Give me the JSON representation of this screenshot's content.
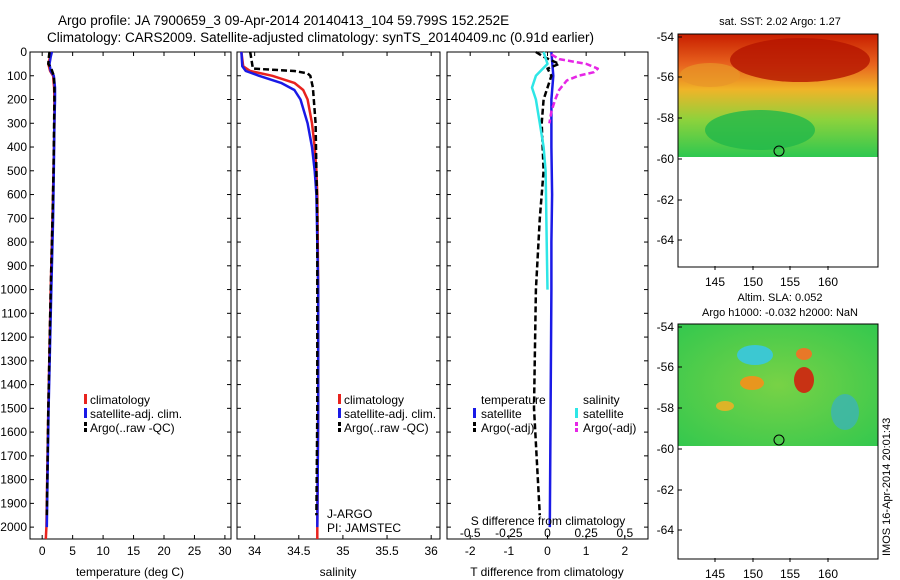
{
  "header": {
    "title_line1": "Argo profile: JA 7900659_3 09-Apr-2014 20140413_104 59.799S 152.252E",
    "title_line2": "Climatology: CARS2009. Satellite-adjusted climatology: synTS_20140409.nc (0.91d earlier)"
  },
  "colors": {
    "climatology": "#e8231e",
    "satellite": "#1a1ae6",
    "argo": "#000000",
    "sal_satellite": "#2ee6e6",
    "sal_argo": "#e626e6"
  },
  "legend": {
    "climatology": "climatology",
    "satellite_adj": "satellite-adj. clim.",
    "argo_raw": "Argo(..raw -QC)",
    "temperature_head": "temperature",
    "salinity_head": "salinity",
    "satellite": "satellite",
    "argo_adj": "Argo(-adj)"
  },
  "credits": {
    "line1": "J-ARGO",
    "line2": "PI: JAMSTEC"
  },
  "watermark": "IMOS 16-Apr-2014 20:01:43",
  "sst_map": {
    "title": "sat. SST: 2.02 Argo: 1.27",
    "lat_ticks": [
      "-54",
      "-56",
      "-58",
      "-60",
      "-62",
      "-64"
    ],
    "lon_ticks": [
      "145",
      "150",
      "155",
      "160"
    ]
  },
  "sla_map": {
    "title_line1": "Altim. SLA: 0.052",
    "title_line2": "Argo h1000: -0.032 h2000: NaN",
    "lat_ticks": [
      "-54",
      "-56",
      "-58",
      "-60",
      "-62",
      "-64"
    ],
    "lon_ticks": [
      "145",
      "150",
      "155",
      "160"
    ]
  },
  "chart_data": [
    {
      "type": "line",
      "xlabel": "temperature (deg C)",
      "ylabel": "",
      "xlim": [
        -2,
        31
      ],
      "ylim": [
        2050,
        0
      ],
      "xticks": [
        "0",
        "5",
        "10",
        "15",
        "20",
        "25",
        "30"
      ],
      "xtick_values": [
        0,
        5,
        10,
        15,
        20,
        25,
        30
      ],
      "yticks": [
        "0",
        "100",
        "200",
        "300",
        "400",
        "500",
        "600",
        "700",
        "800",
        "900",
        "1000",
        "1100",
        "1200",
        "1300",
        "1400",
        "1500",
        "1600",
        "1700",
        "1800",
        "1900",
        "2000"
      ],
      "series": [
        {
          "name": "climatology",
          "depth": [
            0,
            20,
            50,
            80,
            100,
            150,
            200,
            300,
            500,
            700,
            800,
            1000,
            1500,
            2000,
            2050
          ],
          "values": [
            1.5,
            1.3,
            1.0,
            1.3,
            1.8,
            1.95,
            2.0,
            2.0,
            1.85,
            1.7,
            1.6,
            1.4,
            1.0,
            0.7,
            0.6
          ]
        },
        {
          "name": "satellite-adj. clim.",
          "depth": [
            0,
            20,
            50,
            80,
            100,
            150,
            200,
            300,
            500,
            700,
            800,
            1000,
            1500,
            2000
          ],
          "values": [
            1.6,
            1.4,
            1.2,
            1.4,
            1.9,
            2.1,
            2.1,
            2.0,
            1.9,
            1.8,
            1.7,
            1.5,
            1.05,
            0.75
          ]
        },
        {
          "name": "Argo(..raw -QC)",
          "depth": [
            0,
            20,
            50,
            70,
            100,
            150,
            200,
            300,
            500,
            700,
            800,
            1000,
            1500,
            1950
          ],
          "values": [
            1.2,
            1.1,
            1.0,
            1.5,
            1.9,
            2.0,
            2.0,
            1.95,
            1.85,
            1.7,
            1.6,
            1.4,
            1.0,
            0.75
          ]
        }
      ]
    },
    {
      "type": "line",
      "xlabel": "salinity",
      "ylabel": "",
      "xlim": [
        33.8,
        36.1
      ],
      "ylim": [
        2050,
        0
      ],
      "xticks": [
        "34",
        "34.5",
        "35",
        "35.5",
        "36"
      ],
      "xtick_values": [
        34,
        34.5,
        35,
        35.5,
        36
      ],
      "series": [
        {
          "name": "climatology",
          "depth": [
            0,
            60,
            80,
            100,
            130,
            160,
            200,
            300,
            400,
            500,
            600,
            1000,
            1500,
            2000,
            2050
          ],
          "values": [
            33.85,
            33.87,
            33.95,
            34.2,
            34.45,
            34.55,
            34.6,
            34.65,
            34.68,
            34.7,
            34.71,
            34.72,
            34.72,
            34.71,
            34.71
          ]
        },
        {
          "name": "satellite-adj. clim.",
          "depth": [
            0,
            60,
            80,
            100,
            130,
            160,
            200,
            300,
            400,
            500,
            600,
            1000,
            1500,
            2000
          ],
          "values": [
            33.85,
            33.86,
            33.9,
            34.05,
            34.3,
            34.45,
            34.52,
            34.6,
            34.65,
            34.68,
            34.7,
            34.72,
            34.72,
            34.71
          ]
        },
        {
          "name": "Argo(..raw -QC)",
          "depth": [
            0,
            70,
            80,
            90,
            100,
            150,
            200,
            300,
            500,
            700,
            1000,
            1500,
            1950
          ],
          "values": [
            33.95,
            33.98,
            34.45,
            34.6,
            34.63,
            34.66,
            34.67,
            34.69,
            34.7,
            34.71,
            34.71,
            34.71,
            34.7
          ]
        }
      ]
    },
    {
      "type": "line",
      "xlabel": "T difference from climatology",
      "xlabel_top": "S difference from climatology",
      "ylabel": "",
      "xlim": [
        -2.6,
        2.6
      ],
      "ylim": [
        2050,
        0
      ],
      "xticks": [
        "-2",
        "-1",
        "0",
        "1",
        "2"
      ],
      "xtick_values": [
        -2,
        -1,
        0,
        1,
        2
      ],
      "xticks_top": [
        "-0.5",
        "-0.25",
        "0",
        "0.25",
        "0.5"
      ],
      "series": [
        {
          "name": "temperature satellite",
          "depth": [
            0,
            100,
            200,
            400,
            600,
            800,
            1000,
            1500,
            2000
          ],
          "values": [
            0.1,
            0.15,
            0.1,
            0.1,
            0.12,
            0.1,
            0.1,
            0.08,
            0.06
          ]
        },
        {
          "name": "temperature Argo(-adj)",
          "depth": [
            0,
            20,
            50,
            70,
            100,
            150,
            200,
            300,
            500,
            700,
            1000,
            1500,
            1950
          ],
          "values": [
            -0.3,
            -0.1,
            0.3,
            0.0,
            0.1,
            0.0,
            -0.1,
            -0.15,
            -0.1,
            -0.2,
            -0.3,
            -0.35,
            -0.2
          ]
        },
        {
          "name": "salinity satellite",
          "depth": [
            0,
            50,
            100,
            150,
            200,
            300,
            400,
            500,
            600,
            800,
            1000
          ],
          "values": [
            -0.1,
            0.0,
            -0.3,
            -0.4,
            -0.3,
            -0.2,
            -0.1,
            -0.05,
            -0.04,
            -0.02,
            0.0
          ]
        },
        {
          "name": "salinity Argo(-adj)",
          "depth": [
            10,
            30,
            50,
            70,
            85,
            100,
            120,
            160,
            200,
            250,
            300
          ],
          "values": [
            0.1,
            0.3,
            1.0,
            1.3,
            1.2,
            0.8,
            0.5,
            0.3,
            0.2,
            0.1,
            0.05
          ]
        }
      ]
    }
  ]
}
